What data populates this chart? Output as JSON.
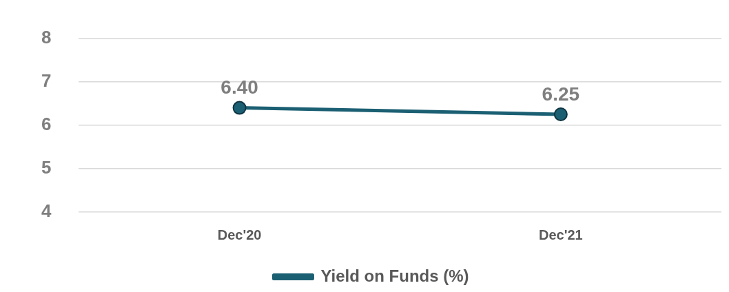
{
  "chart_data": {
    "type": "line",
    "categories": [
      "Dec'20",
      "Dec'21"
    ],
    "series": [
      {
        "name": "Yield on Funds (%)",
        "color": "#1b5f73",
        "values": [
          6.4,
          6.25
        ],
        "value_labels": [
          "6.40",
          "6.25"
        ]
      }
    ],
    "ylim": [
      4,
      8
    ],
    "yticks": [
      4,
      5,
      6,
      7,
      8
    ],
    "grid": "y",
    "legend": "bottom",
    "marker": "circle",
    "line_style": "solid"
  }
}
